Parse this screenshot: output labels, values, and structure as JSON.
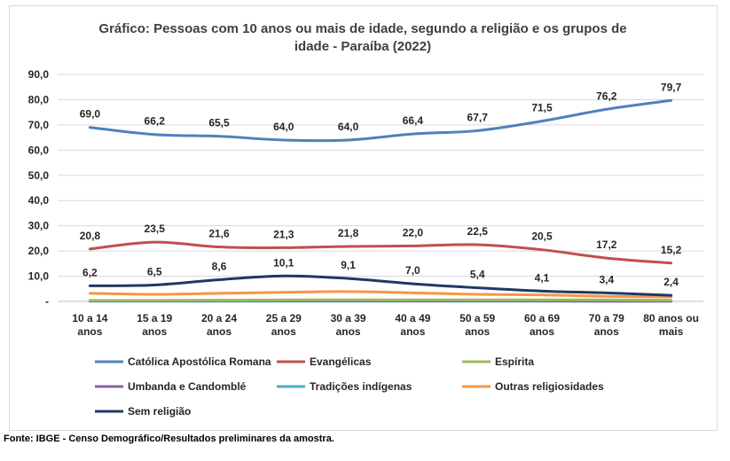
{
  "chart_data": {
    "type": "line",
    "title": "Gráfico: Pessoas com 10 anos ou mais de idade, segundo a religião e os grupos de idade - Paraíba (2022)",
    "title_lines": [
      "Gráfico: Pessoas com 10 anos ou mais de idade, segundo a religião e os grupos de",
      "idade - Paraíba (2022)"
    ],
    "xlabel": "",
    "ylabel": "",
    "ylim": [
      0,
      90
    ],
    "ytick_values": [
      0,
      10,
      20,
      30,
      40,
      50,
      60,
      70,
      80,
      90
    ],
    "ytick_labels": [
      "-",
      "10,0",
      "20,0",
      "30,0",
      "40,0",
      "50,0",
      "60,0",
      "70,0",
      "80,0",
      "90,0"
    ],
    "grid": true,
    "legend_position": "bottom",
    "categories": [
      [
        "10 a 14",
        "anos"
      ],
      [
        "15 a 19",
        "anos"
      ],
      [
        "20 a 24",
        "anos"
      ],
      [
        "25 a 29",
        "anos"
      ],
      [
        "30 a 39",
        "anos"
      ],
      [
        "40 a 49",
        "anos"
      ],
      [
        "50 a 59",
        "anos"
      ],
      [
        "60 a 69",
        "anos"
      ],
      [
        "70 a 79",
        "anos"
      ],
      [
        "80 anos ou",
        "mais"
      ]
    ],
    "series": [
      {
        "name": "Católica Apostólica Romana",
        "color": "#4f81bd",
        "values": [
          69.0,
          66.2,
          65.5,
          64.0,
          64.0,
          66.4,
          67.7,
          71.5,
          76.2,
          79.7
        ],
        "labels": [
          "69,0",
          "66,2",
          "65,5",
          "64,0",
          "64,0",
          "66,4",
          "67,7",
          "71,5",
          "76,2",
          "79,7"
        ]
      },
      {
        "name": "Evangélicas",
        "color": "#c0504d",
        "values": [
          20.8,
          23.5,
          21.6,
          21.3,
          21.8,
          22.0,
          22.5,
          20.5,
          17.2,
          15.2
        ],
        "labels": [
          "20,8",
          "23,5",
          "21,6",
          "21,3",
          "21,8",
          "22,0",
          "22,5",
          "20,5",
          "17,2",
          "15,2"
        ]
      },
      {
        "name": "Espírita",
        "color": "#9bbb59",
        "values": [
          0.4,
          0.4,
          0.5,
          0.6,
          0.6,
          0.6,
          0.6,
          0.6,
          0.6,
          0.5
        ],
        "labels": []
      },
      {
        "name": "Umbanda e Candomblé",
        "color": "#8064a2",
        "values": [
          0.2,
          0.2,
          0.3,
          0.3,
          0.3,
          0.2,
          0.2,
          0.2,
          0.1,
          0.1
        ],
        "labels": []
      },
      {
        "name": "Tradições indígenas",
        "color": "#4bacc6",
        "values": [
          0.1,
          0.1,
          0.1,
          0.1,
          0.1,
          0.1,
          0.1,
          0.1,
          0.1,
          0.1
        ],
        "labels": []
      },
      {
        "name": "Outras religiosidades",
        "color": "#f79646",
        "values": [
          3.2,
          2.8,
          3.2,
          3.6,
          3.9,
          3.4,
          2.8,
          2.6,
          2.0,
          1.8
        ],
        "labels": []
      },
      {
        "name": "Sem religião",
        "color": "#1f3864",
        "values": [
          6.2,
          6.5,
          8.6,
          10.1,
          9.1,
          7.0,
          5.4,
          4.1,
          3.4,
          2.4
        ],
        "labels": [
          "6,2",
          "6,5",
          "8,6",
          "10,1",
          "9,1",
          "7,0",
          "5,4",
          "4,1",
          "3,4",
          "2,4"
        ]
      }
    ]
  },
  "source_text": "Fonte: IBGE - Censo Demográfico/Resultados preliminares da amostra."
}
